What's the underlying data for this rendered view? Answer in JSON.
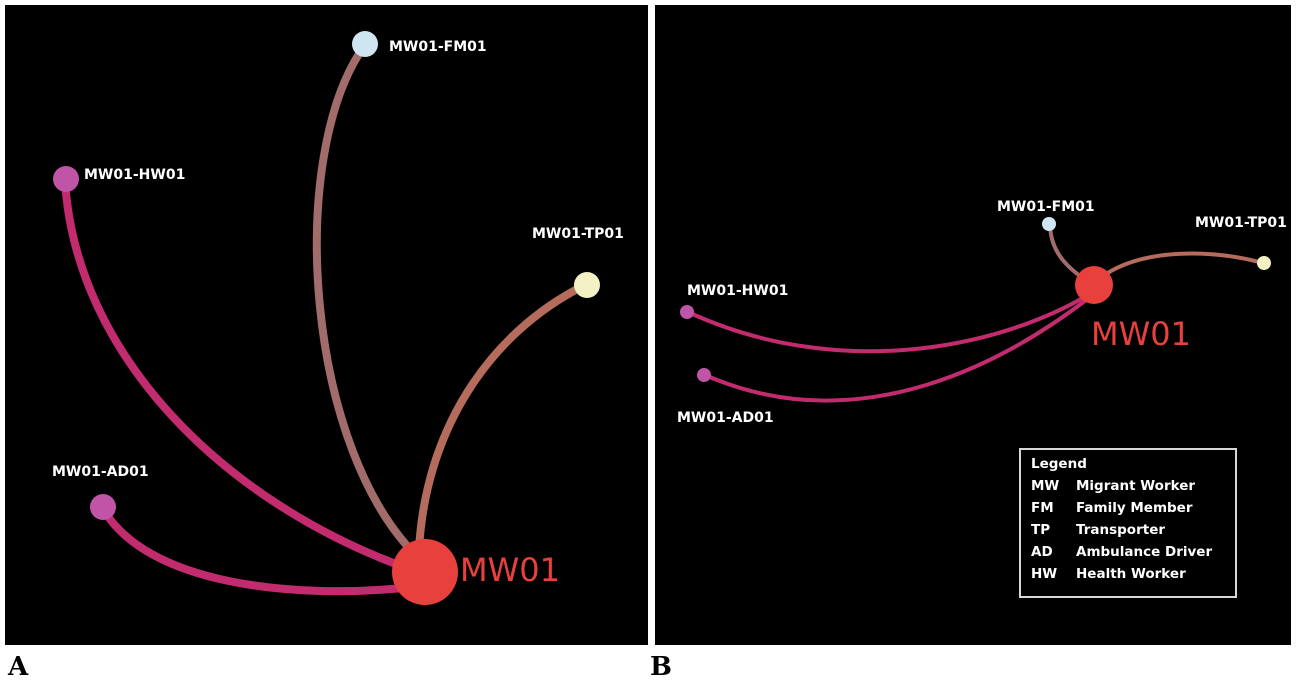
{
  "panel_a": {
    "letter": "A",
    "hub": {
      "label": "MW01",
      "color": "#e8403c"
    },
    "nodes": [
      {
        "id": "MW01-FM01",
        "label": "MW01-FM01",
        "color": "#cde6f2",
        "edge_color": "#a26c6a"
      },
      {
        "id": "MW01-HW01",
        "label": "MW01-HW01",
        "color": "#c054a6",
        "edge_color": "#c22c6e"
      },
      {
        "id": "MW01-TP01",
        "label": "MW01-TP01",
        "color": "#f4f1c4",
        "edge_color": "#b56c5c"
      },
      {
        "id": "MW01-AD01",
        "label": "MW01-AD01",
        "color": "#c054a6",
        "edge_color": "#c22c6e"
      }
    ]
  },
  "panel_b": {
    "letter": "B",
    "hub": {
      "label": "MW01",
      "color": "#e8403c"
    },
    "nodes": [
      {
        "id": "MW01-FM01",
        "label": "MW01-FM01",
        "color": "#cde6f2",
        "edge_color": "#a26c6a"
      },
      {
        "id": "MW01-TP01",
        "label": "MW01-TP01",
        "color": "#f4f1c4",
        "edge_color": "#b56c5c"
      },
      {
        "id": "MW01-HW01",
        "label": "MW01-HW01",
        "color": "#c054a6",
        "edge_color": "#c22c6e"
      },
      {
        "id": "MW01-AD01",
        "label": "MW01-AD01",
        "color": "#c054a6",
        "edge_color": "#c22c6e"
      }
    ],
    "legend": {
      "title": "Legend",
      "items": [
        {
          "abbr": "MW",
          "text": "Migrant Worker"
        },
        {
          "abbr": "FM",
          "text": "Family Member"
        },
        {
          "abbr": "TP",
          "text": "Transporter"
        },
        {
          "abbr": "AD",
          "text": "Ambulance Driver"
        },
        {
          "abbr": "HW",
          "text": "Health Worker"
        }
      ]
    }
  }
}
